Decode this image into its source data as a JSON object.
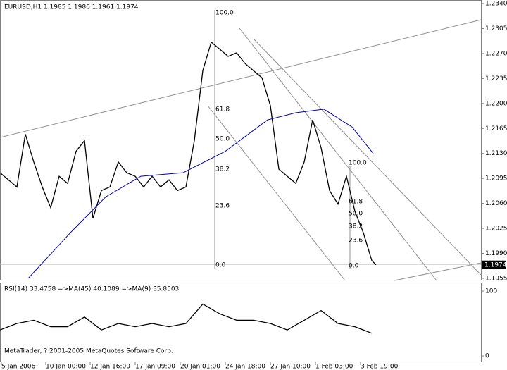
{
  "chart_data": [
    {
      "type": "line",
      "title": "EURUSD,H1  1.1985 1.1986 1.1961 1.1974",
      "xlim": [
        0,
        683
      ],
      "xticks": [
        {
          "value": 2,
          "label": "5 Jan 2006"
        },
        {
          "value": 65,
          "label": "10 Jan 00:00"
        },
        {
          "value": 128,
          "label": "12 Jan 16:00"
        },
        {
          "value": 192,
          "label": "17 Jan 09:00"
        },
        {
          "value": 256,
          "label": "20 Jan 01:00"
        },
        {
          "value": 320,
          "label": "24 Jan 18:00"
        },
        {
          "value": 384,
          "label": "27 Jan 10:00"
        },
        {
          "value": 448,
          "label": "1 Feb 03:00"
        },
        {
          "value": 512,
          "label": "3 Feb 19:00"
        }
      ],
      "ylim": [
        1.1955,
        1.234
      ],
      "yticks": [
        {
          "value": 1.234,
          "label": "1.2340"
        },
        1.2305,
        {
          "value": 1.227,
          "label": "1.2270"
        },
        1.2235,
        {
          "value": 1.22,
          "label": "1.2200"
        },
        1.2165,
        {
          "value": 1.213,
          "label": "1.2130"
        },
        1.2095,
        {
          "value": 1.206,
          "label": "1.2060"
        },
        1.2025,
        {
          "value": 1.199,
          "label": "1.1990"
        },
        1.1955
      ],
      "current_price": 1.1974,
      "fib_levels": [
        "100.0",
        "61.8",
        "50.0",
        "38.2",
        "23.6",
        "0.0"
      ],
      "series": [
        {
          "color": "#000000",
          "x": [
            0,
            12,
            24,
            36,
            48,
            60,
            72,
            84,
            96,
            108,
            120,
            132,
            144,
            156,
            168,
            180,
            192,
            204,
            216,
            228,
            240,
            252,
            264,
            276,
            288,
            300,
            312,
            324,
            336,
            348,
            360,
            372,
            384,
            396,
            408,
            420,
            432,
            444,
            456,
            468,
            480,
            492,
            504,
            516,
            528,
            534
          ],
          "values": [
            1.2103,
            1.2093,
            1.2083,
            1.2157,
            1.2118,
            1.2083,
            1.2054,
            1.2098,
            1.2088,
            1.2133,
            1.2148,
            1.2039,
            1.2078,
            1.2083,
            1.2118,
            1.2103,
            1.2098,
            1.2083,
            1.2098,
            1.2083,
            1.2093,
            1.2078,
            1.2083,
            1.2148,
            1.2246,
            1.2286,
            1.2276,
            1.2266,
            1.2271,
            1.2256,
            1.2246,
            1.2236,
            1.2197,
            1.2108,
            1.2098,
            1.2088,
            1.2118,
            1.2177,
            1.2138,
            1.2078,
            1.2059,
            1.2098,
            1.2049,
            1.2019,
            1.198,
            1.1974
          ]
        },
        {
          "color": "#0000aa",
          "x": [
            40,
            100,
            150,
            200,
            260,
            320,
            380,
            420,
            460,
            500,
            530
          ],
          "values": [
            1.1955,
            1.2019,
            1.2069,
            1.2098,
            1.2103,
            1.2133,
            1.2177,
            1.2187,
            1.2192,
            1.2167,
            1.213
          ]
        }
      ]
    },
    {
      "type": "line",
      "title": "RSI(14) 33.4758 =>MA(45) 40.1089 =>MA(9) 35.8503",
      "annotation": "MetaTrader, ? 2001-2005 MetaQuotes Software Corp.",
      "xlim": [
        0,
        683
      ],
      "ylim": [
        0,
        100
      ],
      "yticks": [
        0,
        100
      ],
      "series": [
        {
          "color": "#000000",
          "x": [
            0,
            24,
            48,
            72,
            96,
            120,
            144,
            168,
            192,
            216,
            240,
            264,
            288,
            312,
            336,
            360,
            384,
            408,
            432,
            456,
            480,
            504,
            528
          ],
          "values": [
            40,
            50,
            55,
            45,
            45,
            60,
            40,
            50,
            45,
            50,
            45,
            50,
            80,
            65,
            55,
            55,
            50,
            40,
            55,
            70,
            50,
            45,
            35
          ]
        }
      ]
    }
  ]
}
